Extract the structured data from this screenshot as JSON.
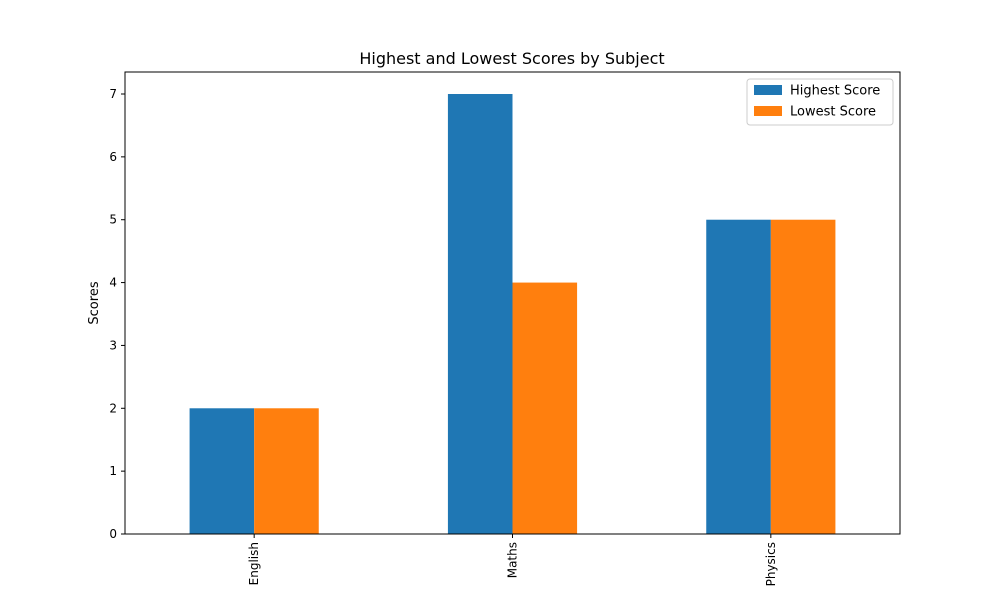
{
  "chart_data": {
    "type": "bar",
    "title": "Highest and Lowest Scores by Subject",
    "xlabel": "",
    "ylabel": "Scores",
    "categories": [
      "English",
      "Maths",
      "Physics"
    ],
    "series": [
      {
        "name": "Highest Score",
        "values": [
          2,
          7,
          5
        ],
        "color": "#1f77b4"
      },
      {
        "name": "Lowest Score",
        "values": [
          2,
          4,
          5
        ],
        "color": "#ff7f0e"
      }
    ],
    "ylim": [
      0,
      7.35
    ],
    "yticks": [
      0,
      1,
      2,
      3,
      4,
      5,
      6,
      7
    ],
    "grid": false,
    "legend_position": "top-right",
    "xtick_rotation": "vertical"
  }
}
